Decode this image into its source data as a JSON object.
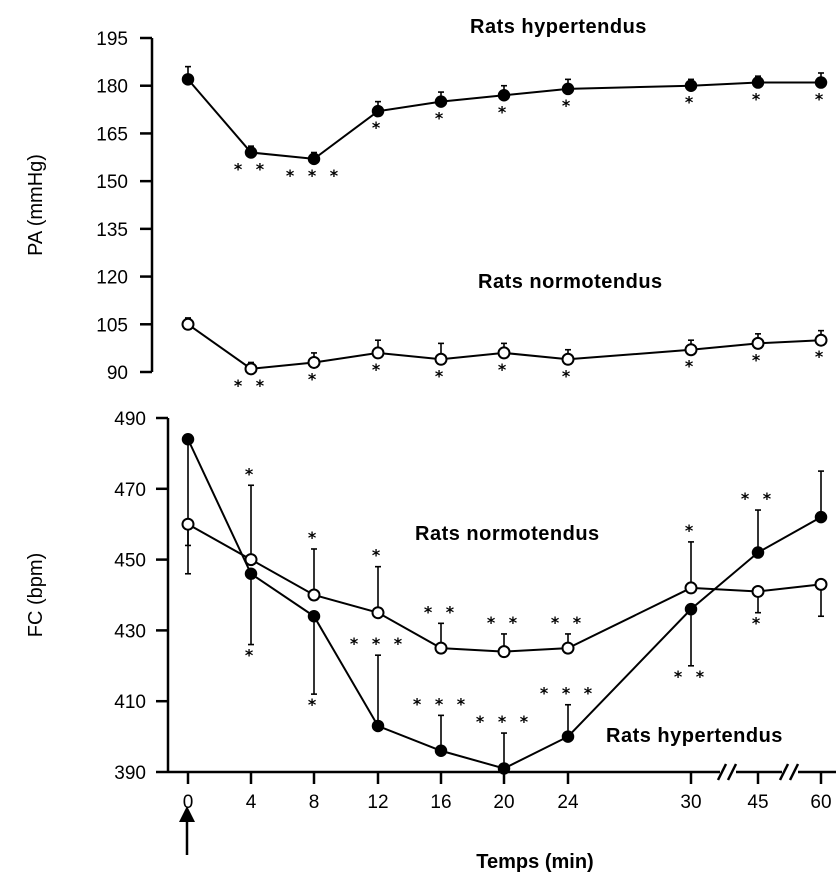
{
  "chart_data": [
    {
      "type": "line",
      "panel": "top",
      "ylabel": "PA (mmHg)",
      "ylim": [
        90,
        195
      ],
      "yticks": [
        "195",
        "180",
        "165",
        "150",
        "135",
        "120",
        "105",
        "90"
      ],
      "x": [
        0,
        4,
        8,
        12,
        16,
        20,
        24,
        30,
        45,
        60
      ],
      "series": [
        {
          "name": "Rats hypertendus",
          "marker": "filled",
          "values": [
            182,
            159,
            157,
            172,
            175,
            177,
            179,
            180,
            181,
            181
          ],
          "errors": [
            4,
            2,
            2,
            3,
            3,
            3,
            3,
            2,
            2,
            3
          ],
          "annotations": [
            "",
            "* *",
            "* * *",
            "*",
            "*",
            "*",
            "*",
            "*",
            "*",
            "*"
          ]
        },
        {
          "name": "Rats normotendus",
          "marker": "open",
          "values": [
            105,
            91,
            93,
            96,
            94,
            96,
            94,
            97,
            99,
            100
          ],
          "errors": [
            2,
            2,
            3,
            4,
            5,
            3,
            3,
            3,
            3,
            3
          ],
          "annotations": [
            "",
            "* *",
            "*",
            "*",
            "*",
            "*",
            "*",
            "*",
            "*",
            "*"
          ]
        }
      ]
    },
    {
      "type": "line",
      "panel": "bottom",
      "ylabel": "FC (bpm)",
      "xlabel": "Temps (min)",
      "ylim": [
        390,
        490
      ],
      "yticks": [
        "490",
        "470",
        "450",
        "430",
        "410",
        "390"
      ],
      "xticklabels": [
        "0",
        "4",
        "8",
        "12",
        "16",
        "20",
        "24",
        "30",
        "45",
        "60"
      ],
      "x": [
        0,
        4,
        8,
        12,
        16,
        20,
        24,
        30,
        45,
        60
      ],
      "series": [
        {
          "name": "Rats hypertendus",
          "marker": "filled",
          "values": [
            484,
            446,
            434,
            403,
            396,
            391,
            400,
            436,
            452,
            462
          ],
          "errors": [
            30,
            20,
            22,
            20,
            10,
            10,
            9,
            16,
            12,
            13
          ],
          "error_direction": [
            "down",
            "down",
            "down",
            "up",
            "up",
            "up",
            "up",
            "down",
            "up",
            "up"
          ],
          "annotations": [
            "",
            "*",
            "*",
            "* * *",
            "* * *",
            "* * *",
            "* * *",
            "* *",
            "* *",
            ""
          ]
        },
        {
          "name": "Rats normotendus",
          "marker": "open",
          "values": [
            460,
            450,
            440,
            435,
            425,
            424,
            425,
            442,
            441,
            443
          ],
          "errors": [
            14,
            21,
            13,
            13,
            7,
            5,
            4,
            13,
            6,
            9
          ],
          "error_direction": [
            "down",
            "up",
            "up",
            "up",
            "up",
            "up",
            "up",
            "up",
            "down",
            "down"
          ],
          "annotations": [
            "",
            "*",
            "*",
            "*",
            "* *",
            "* *",
            "* *",
            "*",
            "*",
            ""
          ]
        }
      ]
    }
  ]
}
